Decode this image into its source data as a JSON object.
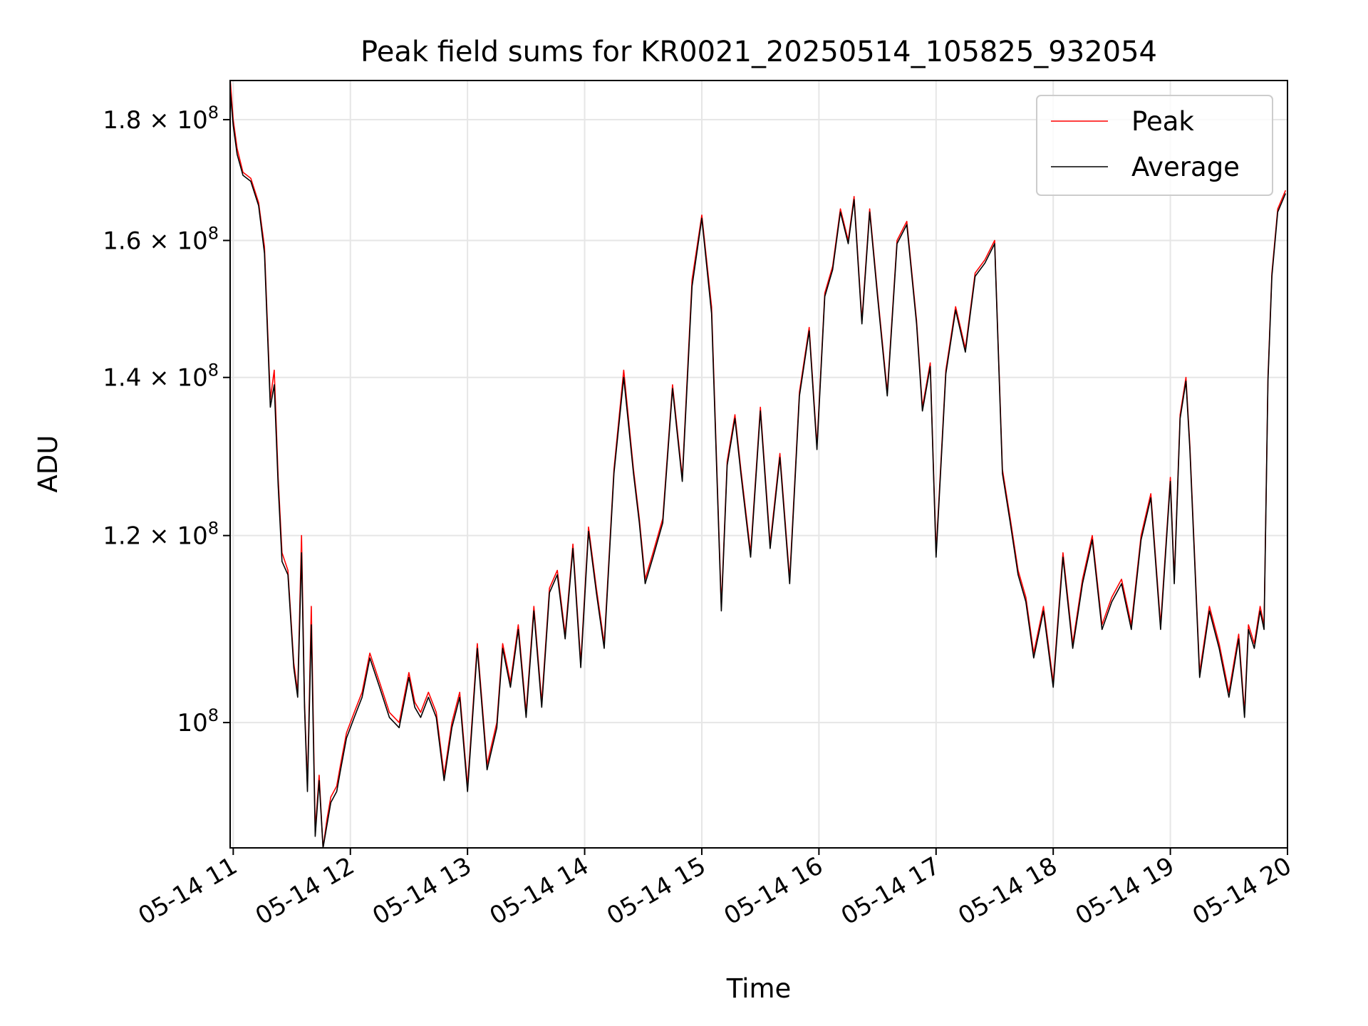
{
  "chart_data": {
    "type": "line",
    "title": "Peak field sums for KR0021_20250514_105825_932054",
    "xlabel": "Time",
    "ylabel": "ADU",
    "yscale": "log",
    "ylim": [
      88500000,
      187000000
    ],
    "xlim": [
      "2025-05-14 10:58:25",
      "2025-05-14 20:00:00"
    ],
    "x_ticks": [
      "05-14 11",
      "05-14 12",
      "05-14 13",
      "05-14 14",
      "05-14 15",
      "05-14 16",
      "05-14 17",
      "05-14 18",
      "05-14 19",
      "05-14 20"
    ],
    "y_ticks": [
      {
        "value": 100000000,
        "mantissa": "",
        "base": "10",
        "exp": "8"
      },
      {
        "value": 120000000,
        "mantissa": "1.2",
        "base": "10",
        "exp": "8"
      },
      {
        "value": 140000000,
        "mantissa": "1.4",
        "base": "10",
        "exp": "8"
      },
      {
        "value": 160000000,
        "mantissa": "1.6",
        "base": "10",
        "exp": "8"
      },
      {
        "value": 180000000,
        "mantissa": "1.8",
        "base": "10",
        "exp": "8"
      }
    ],
    "grid": true,
    "legend": "top-right",
    "series": [
      {
        "name": "Peak",
        "color": "#ff0000",
        "x": [
          "2025-05-14 10:58:30",
          "2025-05-14 11:00:00",
          "2025-05-14 11:02:00",
          "2025-05-14 11:05:00",
          "2025-05-14 11:09:00",
          "2025-05-14 11:13:00",
          "2025-05-14 11:16:00",
          "2025-05-14 11:19:00",
          "2025-05-14 11:21:00",
          "2025-05-14 11:23:00",
          "2025-05-14 11:25:00",
          "2025-05-14 11:28:00",
          "2025-05-14 11:31:00",
          "2025-05-14 11:33:00",
          "2025-05-14 11:35:00",
          "2025-05-14 11:36:30",
          "2025-05-14 11:38:00",
          "2025-05-14 11:40:00",
          "2025-05-14 11:42:00",
          "2025-05-14 11:44:00",
          "2025-05-14 11:46:00",
          "2025-05-14 11:48:00",
          "2025-05-14 11:50:00",
          "2025-05-14 11:53:00",
          "2025-05-14 11:55:00",
          "2025-05-14 11:58:00",
          "2025-05-14 12:02:00",
          "2025-05-14 12:06:00",
          "2025-05-14 12:10:00",
          "2025-05-14 12:15:00",
          "2025-05-14 12:20:00",
          "2025-05-14 12:25:00",
          "2025-05-14 12:30:00",
          "2025-05-14 12:33:00",
          "2025-05-14 12:36:00",
          "2025-05-14 12:40:00",
          "2025-05-14 12:44:00",
          "2025-05-14 12:48:00",
          "2025-05-14 12:52:00",
          "2025-05-14 12:56:00",
          "2025-05-14 13:00:00",
          "2025-05-14 13:05:00",
          "2025-05-14 13:10:00",
          "2025-05-14 13:15:00",
          "2025-05-14 13:18:00",
          "2025-05-14 13:22:00",
          "2025-05-14 13:26:00",
          "2025-05-14 13:30:00",
          "2025-05-14 13:34:00",
          "2025-05-14 13:38:00",
          "2025-05-14 13:42:00",
          "2025-05-14 13:46:00",
          "2025-05-14 13:50:00",
          "2025-05-14 13:54:00",
          "2025-05-14 13:58:00",
          "2025-05-14 14:02:00",
          "2025-05-14 14:06:00",
          "2025-05-14 14:10:00",
          "2025-05-14 14:15:00",
          "2025-05-14 14:20:00",
          "2025-05-14 14:25:00",
          "2025-05-14 14:28:00",
          "2025-05-14 14:31:00",
          "2025-05-14 14:35:00",
          "2025-05-14 14:40:00",
          "2025-05-14 14:45:00",
          "2025-05-14 14:50:00",
          "2025-05-14 14:55:00",
          "2025-05-14 15:00:00",
          "2025-05-14 15:05:00",
          "2025-05-14 15:10:00",
          "2025-05-14 15:13:00",
          "2025-05-14 15:17:00",
          "2025-05-14 15:20:00",
          "2025-05-14 15:25:00",
          "2025-05-14 15:30:00",
          "2025-05-14 15:35:00",
          "2025-05-14 15:40:00",
          "2025-05-14 15:45:00",
          "2025-05-14 15:50:00",
          "2025-05-14 15:55:00",
          "2025-05-14 15:59:00",
          "2025-05-14 16:03:00",
          "2025-05-14 16:07:00",
          "2025-05-14 16:11:00",
          "2025-05-14 16:15:00",
          "2025-05-14 16:18:00",
          "2025-05-14 16:22:00",
          "2025-05-14 16:26:00",
          "2025-05-14 16:30:00",
          "2025-05-14 16:35:00",
          "2025-05-14 16:40:00",
          "2025-05-14 16:45:00",
          "2025-05-14 16:50:00",
          "2025-05-14 16:53:00",
          "2025-05-14 16:57:00",
          "2025-05-14 17:00:00",
          "2025-05-14 17:05:00",
          "2025-05-14 17:10:00",
          "2025-05-14 17:15:00",
          "2025-05-14 17:20:00",
          "2025-05-14 17:25:00",
          "2025-05-14 17:30:00",
          "2025-05-14 17:34:00",
          "2025-05-14 17:38:00",
          "2025-05-14 17:42:00",
          "2025-05-14 17:46:00",
          "2025-05-14 17:50:00",
          "2025-05-14 17:55:00",
          "2025-05-14 18:00:00",
          "2025-05-14 18:05:00",
          "2025-05-14 18:10:00",
          "2025-05-14 18:15:00",
          "2025-05-14 18:20:00",
          "2025-05-14 18:25:00",
          "2025-05-14 18:30:00",
          "2025-05-14 18:35:00",
          "2025-05-14 18:40:00",
          "2025-05-14 18:45:00",
          "2025-05-14 18:50:00",
          "2025-05-14 18:55:00",
          "2025-05-14 19:00:00",
          "2025-05-14 19:02:00",
          "2025-05-14 19:05:00",
          "2025-05-14 19:08:00",
          "2025-05-14 19:10:00",
          "2025-05-14 19:15:00",
          "2025-05-14 19:20:00",
          "2025-05-14 19:25:00",
          "2025-05-14 19:30:00",
          "2025-05-14 19:35:00",
          "2025-05-14 19:38:00",
          "2025-05-14 19:40:00",
          "2025-05-14 19:43:00",
          "2025-05-14 19:46:00",
          "2025-05-14 19:48:00",
          "2025-05-14 19:50:00",
          "2025-05-14 19:52:00",
          "2025-05-14 19:55:00",
          "2025-05-14 19:59:00"
        ],
        "values": [
          187000000,
          180000000,
          175000000,
          171000000,
          170000000,
          166000000,
          159000000,
          137000000,
          141000000,
          127000000,
          118000000,
          116000000,
          106000000,
          103000000,
          120000000,
          102000000,
          94000000,
          112000000,
          90000000,
          95000000,
          88500000,
          91000000,
          93000000,
          94000000,
          96000000,
          99000000,
          101000000,
          103000000,
          107000000,
          104000000,
          101000000,
          100000000,
          105000000,
          102000000,
          101000000,
          103000000,
          101000000,
          95000000,
          100000000,
          103000000,
          94000000,
          108000000,
          96000000,
          100000000,
          108000000,
          104000000,
          110000000,
          101000000,
          112000000,
          102000000,
          114000000,
          116000000,
          109000000,
          119000000,
          106000000,
          121000000,
          114000000,
          108000000,
          128000000,
          141000000,
          128000000,
          122000000,
          115000000,
          118000000,
          122000000,
          139000000,
          127000000,
          154000000,
          164000000,
          150000000,
          112000000,
          129000000,
          135000000,
          128000000,
          118000000,
          136000000,
          119000000,
          130000000,
          115000000,
          138000000,
          147000000,
          131000000,
          152000000,
          156000000,
          165000000,
          160000000,
          167000000,
          148000000,
          165000000,
          152000000,
          138000000,
          160000000,
          163000000,
          148000000,
          136000000,
          142000000,
          118000000,
          141000000,
          150000000,
          144000000,
          155000000,
          157000000,
          160000000,
          128000000,
          122000000,
          116000000,
          113000000,
          107000000,
          112000000,
          104000000,
          118000000,
          108000000,
          115000000,
          120000000,
          110000000,
          113000000,
          115000000,
          110000000,
          120000000,
          125000000,
          110000000,
          127000000,
          115000000,
          135000000,
          140000000,
          131000000,
          105000000,
          112000000,
          108000000,
          103000000,
          109000000,
          101000000,
          110000000,
          108000000,
          112000000,
          110000000,
          140000000,
          155000000,
          165000000,
          168000000
        ]
      },
      {
        "name": "Average",
        "color": "#000000",
        "x": [
          "2025-05-14 10:58:30",
          "2025-05-14 11:00:00",
          "2025-05-14 11:02:00",
          "2025-05-14 11:05:00",
          "2025-05-14 11:09:00",
          "2025-05-14 11:13:00",
          "2025-05-14 11:16:00",
          "2025-05-14 11:19:00",
          "2025-05-14 11:21:00",
          "2025-05-14 11:23:00",
          "2025-05-14 11:25:00",
          "2025-05-14 11:28:00",
          "2025-05-14 11:31:00",
          "2025-05-14 11:33:00",
          "2025-05-14 11:35:00",
          "2025-05-14 11:36:30",
          "2025-05-14 11:38:00",
          "2025-05-14 11:40:00",
          "2025-05-14 11:42:00",
          "2025-05-14 11:44:00",
          "2025-05-14 11:46:00",
          "2025-05-14 11:48:00",
          "2025-05-14 11:50:00",
          "2025-05-14 11:53:00",
          "2025-05-14 11:55:00",
          "2025-05-14 11:58:00",
          "2025-05-14 12:02:00",
          "2025-05-14 12:06:00",
          "2025-05-14 12:10:00",
          "2025-05-14 12:15:00",
          "2025-05-14 12:20:00",
          "2025-05-14 12:25:00",
          "2025-05-14 12:30:00",
          "2025-05-14 12:33:00",
          "2025-05-14 12:36:00",
          "2025-05-14 12:40:00",
          "2025-05-14 12:44:00",
          "2025-05-14 12:48:00",
          "2025-05-14 12:52:00",
          "2025-05-14 12:56:00",
          "2025-05-14 13:00:00",
          "2025-05-14 13:05:00",
          "2025-05-14 13:10:00",
          "2025-05-14 13:15:00",
          "2025-05-14 13:18:00",
          "2025-05-14 13:22:00",
          "2025-05-14 13:26:00",
          "2025-05-14 13:30:00",
          "2025-05-14 13:34:00",
          "2025-05-14 13:38:00",
          "2025-05-14 13:42:00",
          "2025-05-14 13:46:00",
          "2025-05-14 13:50:00",
          "2025-05-14 13:54:00",
          "2025-05-14 13:58:00",
          "2025-05-14 14:02:00",
          "2025-05-14 14:06:00",
          "2025-05-14 14:10:00",
          "2025-05-14 14:15:00",
          "2025-05-14 14:20:00",
          "2025-05-14 14:25:00",
          "2025-05-14 14:28:00",
          "2025-05-14 14:31:00",
          "2025-05-14 14:35:00",
          "2025-05-14 14:40:00",
          "2025-05-14 14:45:00",
          "2025-05-14 14:50:00",
          "2025-05-14 14:55:00",
          "2025-05-14 15:00:00",
          "2025-05-14 15:05:00",
          "2025-05-14 15:10:00",
          "2025-05-14 15:13:00",
          "2025-05-14 15:17:00",
          "2025-05-14 15:20:00",
          "2025-05-14 15:25:00",
          "2025-05-14 15:30:00",
          "2025-05-14 15:35:00",
          "2025-05-14 15:40:00",
          "2025-05-14 15:45:00",
          "2025-05-14 15:50:00",
          "2025-05-14 15:55:00",
          "2025-05-14 15:59:00",
          "2025-05-14 16:03:00",
          "2025-05-14 16:07:00",
          "2025-05-14 16:11:00",
          "2025-05-14 16:15:00",
          "2025-05-14 16:18:00",
          "2025-05-14 16:22:00",
          "2025-05-14 16:26:00",
          "2025-05-14 16:30:00",
          "2025-05-14 16:35:00",
          "2025-05-14 16:40:00",
          "2025-05-14 16:45:00",
          "2025-05-14 16:50:00",
          "2025-05-14 16:53:00",
          "2025-05-14 16:57:00",
          "2025-05-14 17:00:00",
          "2025-05-14 17:05:00",
          "2025-05-14 17:10:00",
          "2025-05-14 17:15:00",
          "2025-05-14 17:20:00",
          "2025-05-14 17:25:00",
          "2025-05-14 17:30:00",
          "2025-05-14 17:34:00",
          "2025-05-14 17:38:00",
          "2025-05-14 17:42:00",
          "2025-05-14 17:46:00",
          "2025-05-14 17:50:00",
          "2025-05-14 17:55:00",
          "2025-05-14 18:00:00",
          "2025-05-14 18:05:00",
          "2025-05-14 18:10:00",
          "2025-05-14 18:15:00",
          "2025-05-14 18:20:00",
          "2025-05-14 18:25:00",
          "2025-05-14 18:30:00",
          "2025-05-14 18:35:00",
          "2025-05-14 18:40:00",
          "2025-05-14 18:45:00",
          "2025-05-14 18:50:00",
          "2025-05-14 18:55:00",
          "2025-05-14 19:00:00",
          "2025-05-14 19:02:00",
          "2025-05-14 19:05:00",
          "2025-05-14 19:08:00",
          "2025-05-14 19:10:00",
          "2025-05-14 19:15:00",
          "2025-05-14 19:20:00",
          "2025-05-14 19:25:00",
          "2025-05-14 19:30:00",
          "2025-05-14 19:35:00",
          "2025-05-14 19:38:00",
          "2025-05-14 19:40:00",
          "2025-05-14 19:43:00",
          "2025-05-14 19:46:00",
          "2025-05-14 19:48:00",
          "2025-05-14 19:50:00",
          "2025-05-14 19:52:00",
          "2025-05-14 19:55:00",
          "2025-05-14 19:59:00"
        ],
        "values": [
          185000000,
          179000000,
          174000000,
          170500000,
          169500000,
          165500000,
          158000000,
          136000000,
          139000000,
          126000000,
          117000000,
          115500000,
          105500000,
          102500000,
          118000000,
          101500000,
          93500000,
          110000000,
          89500000,
          94500000,
          88500000,
          90500000,
          92500000,
          93500000,
          95500000,
          98500000,
          100500000,
          102500000,
          106500000,
          103500000,
          100500000,
          99500000,
          104500000,
          101500000,
          100500000,
          102500000,
          100500000,
          94500000,
          99500000,
          102500000,
          93500000,
          107500000,
          95500000,
          99500000,
          107500000,
          103500000,
          109500000,
          100500000,
          111500000,
          101500000,
          113500000,
          115500000,
          108500000,
          118500000,
          105500000,
          120500000,
          113500000,
          107500000,
          127500000,
          140000000,
          127500000,
          121500000,
          114500000,
          117500000,
          121500000,
          138500000,
          126500000,
          153000000,
          163500000,
          149000000,
          111500000,
          128500000,
          134500000,
          127500000,
          117500000,
          135500000,
          118500000,
          129500000,
          114500000,
          137500000,
          146500000,
          130500000,
          151500000,
          155500000,
          164500000,
          159500000,
          166500000,
          147500000,
          164500000,
          151500000,
          137500000,
          159500000,
          162500000,
          147500000,
          135500000,
          141500000,
          117500000,
          140500000,
          149500000,
          143500000,
          154500000,
          156500000,
          159500000,
          127500000,
          121500000,
          115500000,
          112500000,
          106500000,
          111500000,
          103500000,
          117500000,
          107500000,
          114500000,
          119500000,
          109500000,
          112500000,
          114500000,
          109500000,
          119500000,
          124500000,
          109500000,
          126500000,
          114500000,
          134500000,
          139500000,
          130500000,
          104500000,
          111500000,
          107500000,
          102500000,
          108500000,
          100500000,
          109500000,
          107500000,
          111500000,
          109500000,
          139500000,
          154500000,
          164500000,
          167500000
        ]
      }
    ]
  }
}
